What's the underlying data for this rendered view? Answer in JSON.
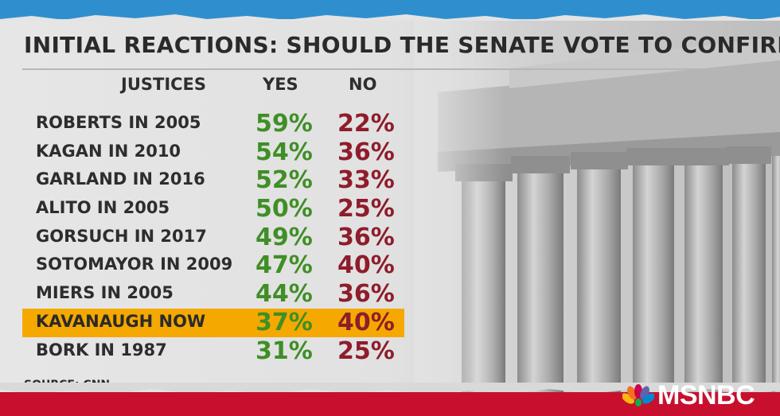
{
  "title": "INITIAL REACTIONS: SHOULD THE SENATE VOTE TO CONFIRM...",
  "columns": {
    "justices": "JUSTICES",
    "yes": "YES",
    "no": "NO"
  },
  "rows": [
    {
      "name": "ROBERTS IN 2005",
      "yes": "59%",
      "no": "22%"
    },
    {
      "name": "KAGAN IN 2010",
      "yes": "54%",
      "no": "36%"
    },
    {
      "name": "GARLAND IN 2016",
      "yes": "52%",
      "no": "33%"
    },
    {
      "name": "ALITO IN 2005",
      "yes": "50%",
      "no": "25%"
    },
    {
      "name": "GORSUCH IN 2017",
      "yes": "49%",
      "no": "36%"
    },
    {
      "name": "SOTOMAYOR IN 2009",
      "yes": "47%",
      "no": "40%"
    },
    {
      "name": "MIERS IN 2005",
      "yes": "44%",
      "no": "36%"
    },
    {
      "name": "KAVANAUGH NOW",
      "yes": "37%",
      "no": "40%",
      "highlighted": true
    },
    {
      "name": "BORK IN 1987",
      "yes": "31%",
      "no": "25%"
    }
  ],
  "source": "SOURCE: CNN",
  "logo": {
    "text": "MSNBC",
    "icon": "peacock-icon"
  },
  "colors": {
    "yes": "#3f8f26",
    "no": "#8e1c2b",
    "highlight": "#f5a800",
    "top_band": "#2f8fce",
    "bottom_band": "#c8102e"
  }
}
